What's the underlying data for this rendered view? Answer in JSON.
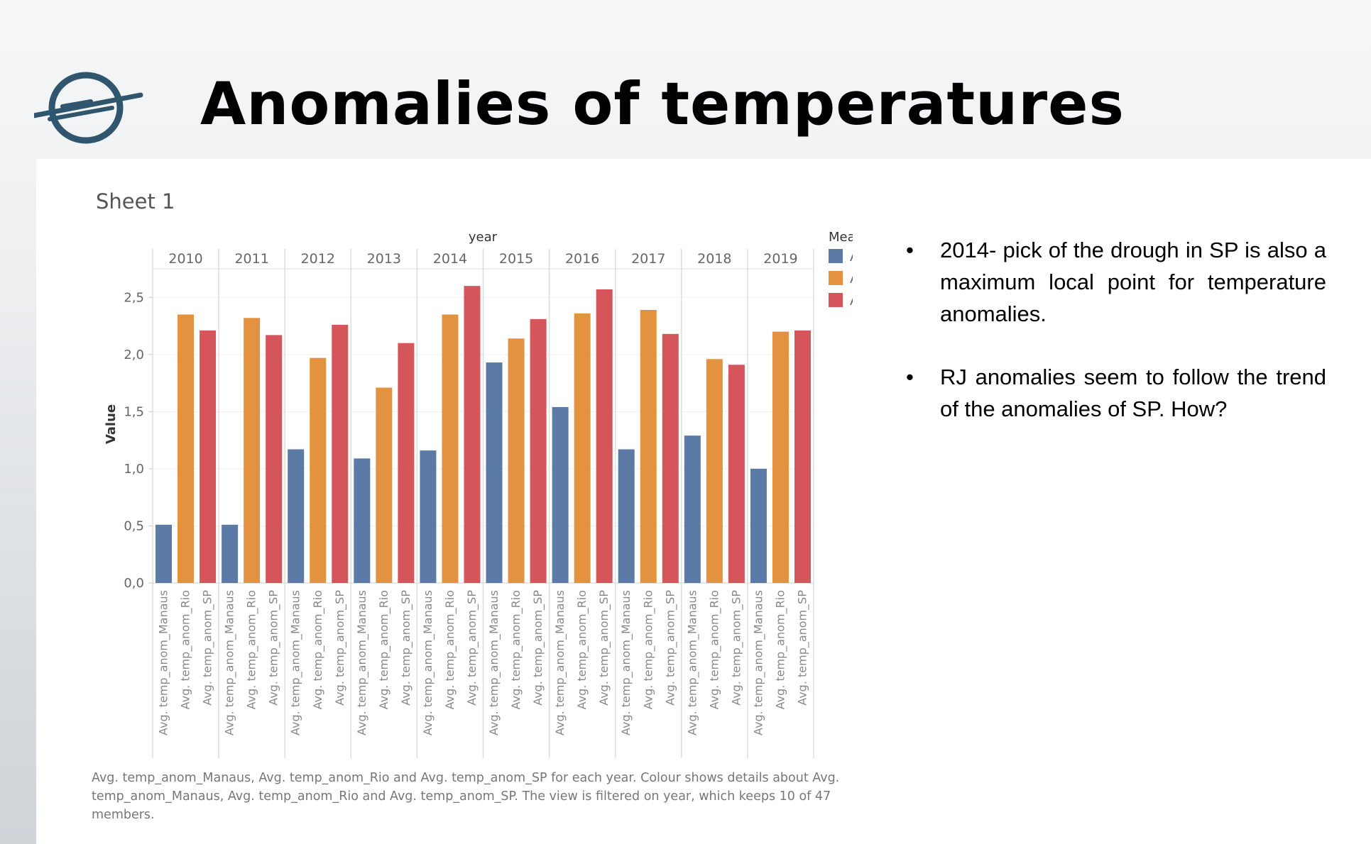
{
  "slide": {
    "title": "Anomalies of temperatures"
  },
  "chart": {
    "sheet_title": "Sheet 1",
    "caption": "Avg. temp_anom_Manaus, Avg. temp_anom_Rio and Avg. temp_anom_SP for each year.  Colour shows details about Avg. temp_anom_Manaus, Avg. temp_anom_Rio and Avg. temp_anom_SP. The view is filtered on year, which keeps 10 of 47 members."
  },
  "notes": [
    "2014- pick of the drough in SP is also a maximum local point for temperature anomalies.",
    "RJ anomalies seem to follow the trend of the anomalies of SP. How?"
  ],
  "chart_data": {
    "type": "bar",
    "title": "Sheet 1",
    "column_header": "year",
    "xlabel": "",
    "ylabel": "Value",
    "categories": [
      "2010",
      "2011",
      "2012",
      "2013",
      "2014",
      "2015",
      "2016",
      "2017",
      "2018",
      "2019"
    ],
    "category_labels": [
      "Avg. temp_anom_Manaus",
      "Avg. temp_anom_Rio",
      "Avg. temp_anom_SP"
    ],
    "series": [
      {
        "name": "Avg. temp_anom_Manaus",
        "color": "#5b7aa6",
        "values": [
          0.51,
          0.51,
          1.17,
          1.09,
          1.16,
          1.93,
          1.54,
          1.17,
          1.29,
          1.0
        ]
      },
      {
        "name": "Avg. temp_anom_Rio",
        "color": "#e3923f",
        "values": [
          2.35,
          2.32,
          1.97,
          1.71,
          2.35,
          2.14,
          2.36,
          2.39,
          1.96,
          2.2
        ]
      },
      {
        "name": "Avg. temp_anom_SP",
        "color": "#d4555a",
        "values": [
          2.21,
          2.17,
          2.26,
          2.1,
          2.6,
          2.31,
          2.57,
          2.18,
          1.91,
          2.21
        ]
      }
    ],
    "ylim": [
      0,
      2.75
    ],
    "yticks": [
      "0,0",
      "0,5",
      "1,0",
      "1,5",
      "2,0",
      "2,5"
    ],
    "legend": {
      "title": "Measure Names",
      "position": "top-right"
    },
    "grid": true
  }
}
